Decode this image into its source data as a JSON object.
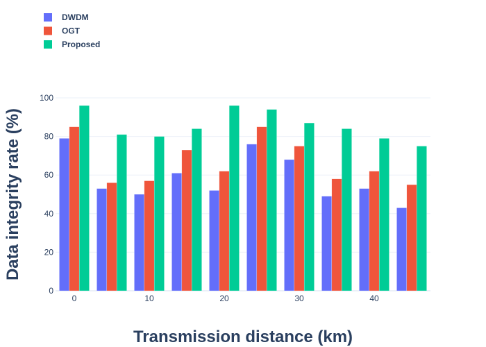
{
  "chart_data": {
    "type": "bar",
    "title": "",
    "xlabel": "Transmission distance (km)",
    "ylabel": "Data integrity rate (%)",
    "categories": [
      0,
      5,
      10,
      15,
      20,
      25,
      30,
      35,
      40,
      45
    ],
    "x_ticks": [
      "0",
      "10",
      "20",
      "30",
      "40"
    ],
    "x_tick_values": [
      0,
      10,
      20,
      30,
      40
    ],
    "y_ticks": [
      "0",
      "20",
      "40",
      "60",
      "80",
      "100"
    ],
    "y_tick_values": [
      0,
      20,
      40,
      60,
      80,
      100
    ],
    "ylim": [
      0,
      100
    ],
    "xlim": [
      -2.5,
      47.5
    ],
    "grid": true,
    "legend_position": "top-left",
    "series": [
      {
        "name": "DWDM",
        "color": "#636efa",
        "values": [
          79,
          53,
          50,
          61,
          52,
          76,
          68,
          49,
          53,
          43
        ]
      },
      {
        "name": "OGT",
        "color": "#ef553b",
        "values": [
          85,
          56,
          57,
          73,
          62,
          85,
          75,
          58,
          62,
          55
        ]
      },
      {
        "name": "Proposed",
        "color": "#00cc96",
        "values": [
          96,
          81,
          80,
          84,
          96,
          94,
          87,
          84,
          79,
          75
        ]
      }
    ]
  }
}
